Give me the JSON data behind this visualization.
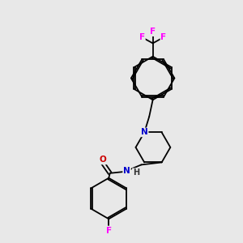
{
  "background_color": "#e8e8e8",
  "bond_color": "#000000",
  "atom_colors": {
    "F": "#ff00ff",
    "N": "#0000cc",
    "O": "#cc0000",
    "C": "#000000"
  },
  "lw": 1.3,
  "fs": 7.0
}
